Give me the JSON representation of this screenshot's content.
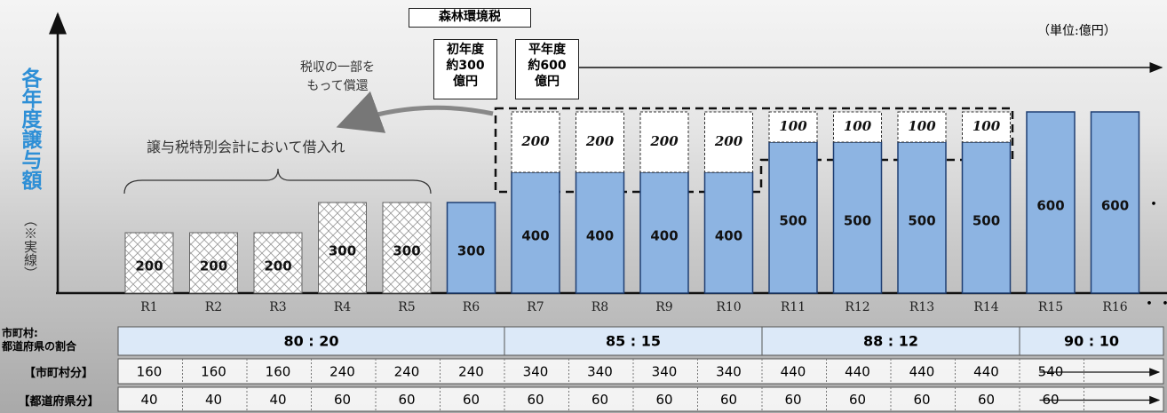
{
  "chart_data": {
    "type": "bar",
    "stacked": true,
    "categories": [
      "R1",
      "R2",
      "R3",
      "R4",
      "R5",
      "R6",
      "R7",
      "R8",
      "R9",
      "R10",
      "R11",
      "R12",
      "R13",
      "R14",
      "R15",
      "R16"
    ],
    "ylim": [
      0,
      900
    ],
    "series": [
      {
        "style": "hatch",
        "color": "#ffffff",
        "values": [
          200,
          200,
          200,
          300,
          300,
          null,
          null,
          null,
          null,
          null,
          null,
          null,
          null,
          null,
          null,
          null
        ]
      },
      {
        "style": "solid",
        "color": "#8db4e2",
        "values": [
          null,
          null,
          null,
          null,
          null,
          300,
          400,
          400,
          400,
          400,
          500,
          500,
          500,
          500,
          600,
          600
        ]
      },
      {
        "style": "dashed",
        "color": "#ffffff",
        "values": [
          null,
          null,
          null,
          null,
          null,
          null,
          200,
          200,
          200,
          200,
          100,
          100,
          100,
          100,
          null,
          null
        ]
      }
    ],
    "y_label": "各年度譲与額",
    "y_label_note": "（※実線）",
    "unit": "（単位:億円）",
    "ellipsis": "・・・",
    "annotations": {
      "tax_name": "森林環境税",
      "first_year": "初年度\n約300\n億円",
      "normal_year": "平年度\n約600\n億円",
      "repayment": "税収の一部を\nもって償還",
      "borrowing": "譲与税特別会計において借入れ"
    }
  },
  "table": {
    "row_headers": [
      "市町村:\n都道府県の割合",
      "【市町村分】",
      "【都道府県分】"
    ],
    "ratios": [
      {
        "label": "80 : 20",
        "columns": 6
      },
      {
        "label": "85 : 15",
        "columns": 4
      },
      {
        "label": "88 : 12",
        "columns": 4
      },
      {
        "label": "90 : 10",
        "columns": 2
      }
    ],
    "rows": [
      [
        160,
        160,
        160,
        240,
        240,
        240,
        340,
        340,
        340,
        340,
        440,
        440,
        440,
        440,
        540,
        null
      ],
      [
        40,
        40,
        40,
        60,
        60,
        60,
        60,
        60,
        60,
        60,
        60,
        60,
        60,
        60,
        60,
        null
      ]
    ]
  }
}
